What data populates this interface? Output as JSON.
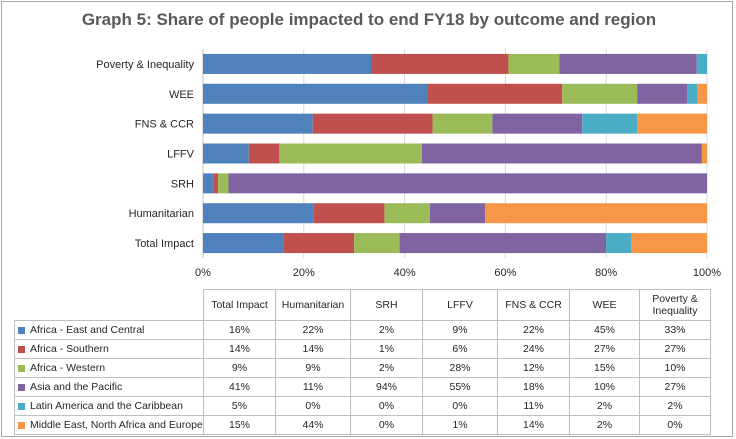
{
  "colors": {
    "africa_east_central": "#4f81bd",
    "africa_southern": "#c0504d",
    "africa_western": "#9bbb59",
    "asia_pacific": "#8064a2",
    "latin_america": "#4bacc6",
    "mena_europe": "#f79646"
  },
  "chart_data": {
    "type": "bar",
    "orientation": "horizontal",
    "stacked": "percent",
    "title": "Graph 5: Share of people impacted to end FY18 by outcome and region",
    "categories": [
      "Poverty & Inequality",
      "WEE",
      "FNS & CCR",
      "LFFV",
      "SRH",
      "Humanitarian",
      "Total Impact"
    ],
    "series": [
      {
        "name": "Africa - East and Central",
        "color": "#4f81bd",
        "values": [
          33,
          45,
          22,
          9,
          2,
          22,
          16
        ]
      },
      {
        "name": "Africa - Southern",
        "color": "#c0504d",
        "values": [
          27,
          27,
          24,
          6,
          1,
          14,
          14
        ]
      },
      {
        "name": "Africa - Western",
        "color": "#9bbb59",
        "values": [
          10,
          15,
          12,
          28,
          2,
          9,
          9
        ]
      },
      {
        "name": "Asia and the Pacific",
        "color": "#8064a2",
        "values": [
          27,
          10,
          18,
          55,
          94,
          11,
          41
        ]
      },
      {
        "name": "Latin America and the Caribbean",
        "color": "#4bacc6",
        "values": [
          2,
          2,
          11,
          0,
          0,
          0,
          5
        ]
      },
      {
        "name": "Middle East, North Africa and Europe",
        "color": "#f79646",
        "values": [
          0,
          2,
          14,
          1,
          0,
          44,
          15
        ]
      }
    ],
    "xlim": [
      0,
      100
    ],
    "x_ticks": [
      "0%",
      "20%",
      "40%",
      "60%",
      "80%",
      "100%"
    ],
    "grid": true,
    "legend": "data table below chart"
  },
  "table": {
    "columns": [
      "Total Impact",
      "Humanitarian",
      "SRH",
      "LFFV",
      "FNS & CCR",
      "WEE",
      "Poverty & Inequality"
    ],
    "rows": [
      {
        "label": "Africa - East and Central",
        "color": "#4f81bd",
        "cells": [
          "16%",
          "22%",
          "2%",
          "9%",
          "22%",
          "45%",
          "33%"
        ]
      },
      {
        "label": "Africa - Southern",
        "color": "#c0504d",
        "cells": [
          "14%",
          "14%",
          "1%",
          "6%",
          "24%",
          "27%",
          "27%"
        ]
      },
      {
        "label": "Africa - Western",
        "color": "#9bbb59",
        "cells": [
          "9%",
          "9%",
          "2%",
          "28%",
          "12%",
          "15%",
          "10%"
        ]
      },
      {
        "label": "Asia and the Pacific",
        "color": "#8064a2",
        "cells": [
          "41%",
          "11%",
          "94%",
          "55%",
          "18%",
          "10%",
          "27%"
        ]
      },
      {
        "label": "Latin America and the Caribbean",
        "color": "#4bacc6",
        "cells": [
          "5%",
          "0%",
          "0%",
          "0%",
          "11%",
          "2%",
          "2%"
        ]
      },
      {
        "label": "Middle East, North Africa and Europe",
        "color": "#f79646",
        "cells": [
          "15%",
          "44%",
          "0%",
          "1%",
          "14%",
          "2%",
          "0%"
        ]
      }
    ]
  }
}
